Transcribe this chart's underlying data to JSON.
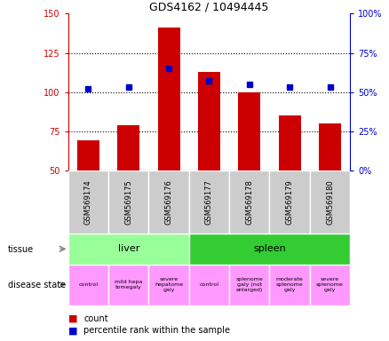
{
  "title": "GDS4162 / 10494445",
  "samples": [
    "GSM569174",
    "GSM569175",
    "GSM569176",
    "GSM569177",
    "GSM569178",
    "GSM569179",
    "GSM569180"
  ],
  "counts": [
    69,
    79,
    141,
    113,
    100,
    85,
    80
  ],
  "percentile_ranks": [
    52,
    53,
    65,
    57,
    55,
    53,
    53
  ],
  "ylim_left": [
    50,
    150
  ],
  "ylim_right": [
    0,
    100
  ],
  "yticks_left": [
    50,
    75,
    100,
    125,
    150
  ],
  "yticks_right": [
    0,
    25,
    50,
    75,
    100
  ],
  "bar_color": "#cc0000",
  "dot_color": "#0000cc",
  "tissue_liver_label": "liver",
  "tissue_spleen_label": "spleen",
  "tissue_liver_color": "#99ff99",
  "tissue_spleen_color": "#33cc33",
  "disease_color": "#ff99ff",
  "disease_labels": [
    "control",
    "mild hepa\ntomegaly",
    "severe\nhepatome\ngaly",
    "control",
    "splenome\ngaly (not\nenlarged)",
    "moderate\nsplenome\ngaly",
    "severe\nsplenome\ngaly"
  ],
  "sample_bg_color": "#cccccc",
  "legend_count_color": "#cc0000",
  "legend_dot_color": "#0000cc"
}
